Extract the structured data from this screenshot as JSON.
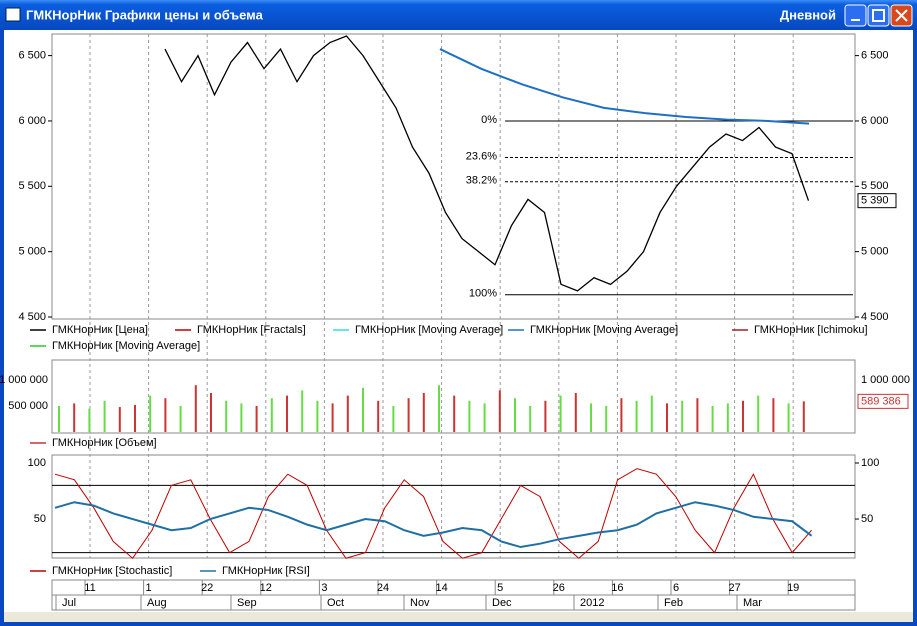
{
  "window": {
    "title": "ГМКНорНик Графики цены и объема",
    "period": "Дневной"
  },
  "price_panel": {
    "yticks": [
      {
        "value": 6500,
        "label": "6 500"
      },
      {
        "value": 6000,
        "label": "6 000"
      },
      {
        "value": 5500,
        "label": "5 500"
      },
      {
        "value": 5000,
        "label": "5 000"
      },
      {
        "value": 4500,
        "label": "4 500"
      }
    ],
    "ylim": [
      4500,
      6650
    ],
    "price": [
      6550,
      6300,
      6500,
      6200,
      6450,
      6600,
      6400,
      6550,
      6300,
      6500,
      6600,
      6650,
      6500,
      6300,
      6100,
      5800,
      5600,
      5300,
      5100,
      5000,
      4900,
      5200,
      5400,
      5300,
      4750,
      4700,
      4800,
      4750,
      4850,
      5000,
      5300,
      5500,
      5650,
      5800,
      5900,
      5850,
      5950,
      5800,
      5750,
      5390
    ],
    "ma_long": [
      6550,
      6400,
      6280,
      6180,
      6100,
      6060,
      6030,
      6010,
      6000,
      5980
    ],
    "last": {
      "value": 5390,
      "label": "5 390"
    },
    "fib": [
      {
        "value": 6000,
        "label": "0%"
      },
      {
        "value": 5720,
        "label": "23.6%"
      },
      {
        "value": 5535,
        "label": "38.2%"
      },
      {
        "value": 4670,
        "label": "100%"
      }
    ],
    "legend": [
      "ГМКНорНик [Цена]",
      "ГМКНорНик [Fractals]",
      "ГМКНорНик [Moving Average]",
      "ГМКНорНик [Moving Average]",
      "ГМКНорНик [Ichimoku]",
      "ГМКНорНик [Moving Average]"
    ],
    "legend_colors": [
      "#000000",
      "#c00000",
      "#33dddd",
      "#1f6fc4",
      "#a02020",
      "#22cc22"
    ]
  },
  "volume_panel": {
    "ylim": [
      0,
      1000000
    ],
    "yticks_left": [
      {
        "value": 1000000,
        "label": "1 000 000"
      },
      {
        "value": 500000,
        "label": "500 000"
      }
    ],
    "yticks_right": [
      {
        "value": 1000000,
        "label": "1 000 000"
      }
    ],
    "last": {
      "value": 589386,
      "label": "589 386"
    },
    "values": [
      500000,
      550000,
      450000,
      600000,
      480000,
      520000,
      700000,
      650000,
      500000,
      900000,
      750000,
      600000,
      550000,
      500000,
      650000,
      700000,
      800000,
      600000,
      550000,
      700000,
      850000,
      600000,
      500000,
      650000,
      750000,
      900000,
      700000,
      600000,
      550000,
      800000,
      650000,
      500000,
      600000,
      700000,
      750000,
      550000,
      500000,
      650000,
      600000,
      700000,
      550000,
      600000,
      650000,
      500000,
      550000,
      600000,
      700000,
      650000,
      550000,
      589386
    ],
    "up": [
      true,
      false,
      true,
      true,
      false,
      false,
      true,
      false,
      true,
      false,
      false,
      true,
      true,
      false,
      true,
      false,
      true,
      true,
      false,
      false,
      true,
      false,
      true,
      false,
      false,
      true,
      false,
      true,
      true,
      false,
      true,
      true,
      false,
      true,
      false,
      true,
      true,
      false,
      true,
      true,
      false,
      true,
      false,
      true,
      true,
      false,
      true,
      false,
      true,
      false
    ],
    "colors": {
      "up": "#66dd44",
      "down": "#cc3333"
    },
    "legend": "ГМКНорНик [Объем]"
  },
  "osc_panel": {
    "ylim": [
      17,
      100
    ],
    "yticks": [
      100,
      50
    ],
    "levels": [
      80,
      20
    ],
    "stochastic": [
      90,
      85,
      60,
      30,
      15,
      40,
      80,
      85,
      50,
      20,
      30,
      70,
      90,
      80,
      40,
      15,
      20,
      60,
      85,
      70,
      30,
      15,
      20,
      50,
      80,
      70,
      30,
      15,
      30,
      85,
      95,
      90,
      70,
      40,
      20,
      60,
      90,
      50,
      20,
      40
    ],
    "rsi": [
      60,
      65,
      62,
      55,
      50,
      45,
      40,
      42,
      50,
      55,
      60,
      58,
      52,
      45,
      40,
      45,
      50,
      48,
      40,
      35,
      38,
      42,
      40,
      30,
      25,
      28,
      32,
      35,
      38,
      40,
      45,
      55,
      60,
      65,
      62,
      58,
      52,
      50,
      48,
      35
    ],
    "legend": [
      "ГМКНорНик [Stochastic]",
      "ГМКНорНик [RSI]"
    ],
    "legend_colors": [
      "#c00000",
      "#1f6fa4"
    ]
  },
  "date_axis": {
    "days": [
      "11",
      "1",
      "22",
      "12",
      "3",
      "24",
      "14",
      "5",
      "26",
      "16",
      "6",
      "27",
      "19"
    ],
    "months": [
      "Jul",
      "Aug",
      "Sep",
      "Oct",
      "Nov",
      "Dec",
      "2012",
      "Feb",
      "Mar"
    ]
  }
}
